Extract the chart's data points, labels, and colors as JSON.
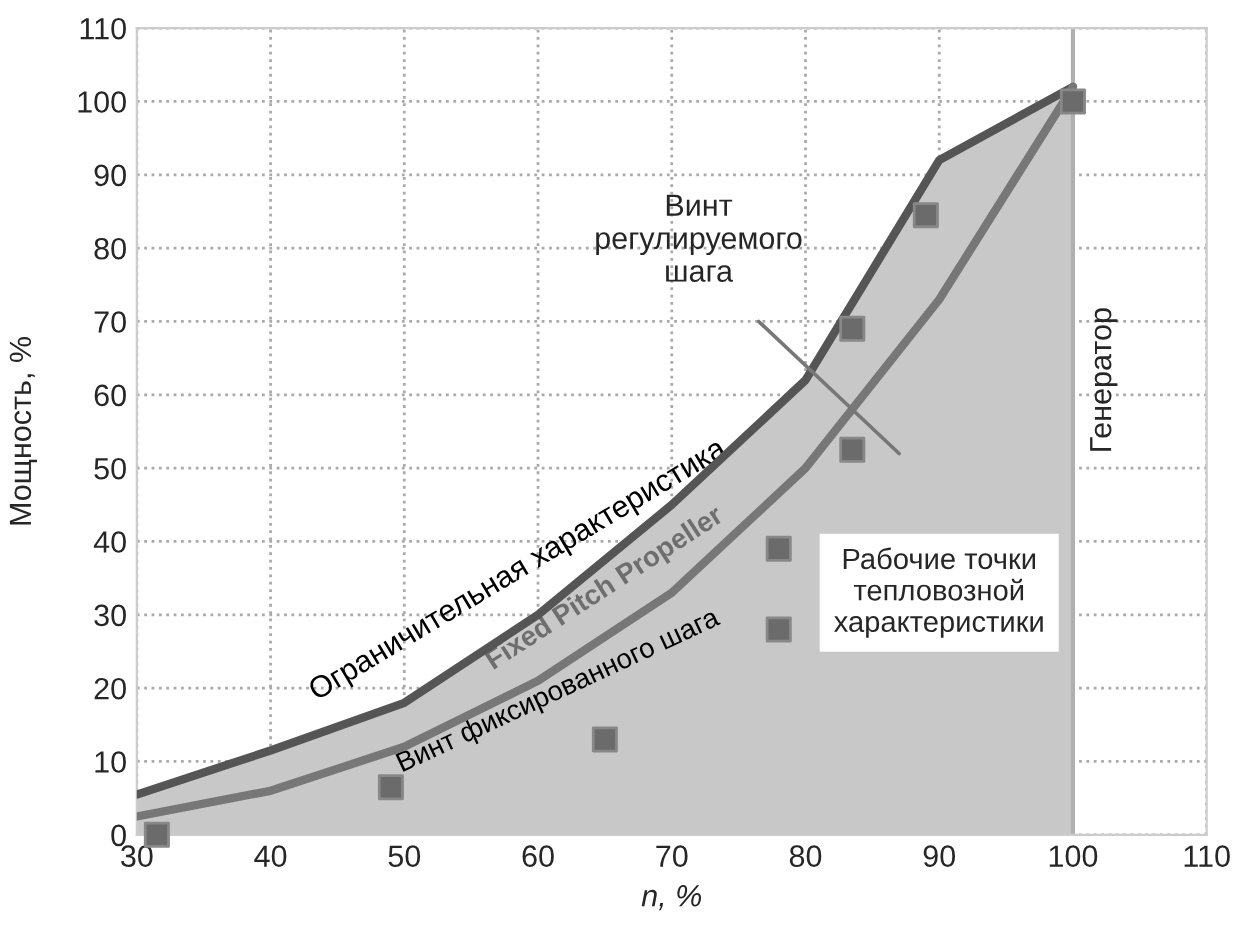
{
  "chart_data": {
    "type": "line",
    "xlabel": "n, %",
    "ylabel": "Мощность, %",
    "xlim": [
      30,
      110
    ],
    "xticks": [
      30,
      40,
      50,
      60,
      70,
      80,
      90,
      100,
      110
    ],
    "ylim": [
      0,
      110
    ],
    "yticks": [
      0,
      10,
      20,
      30,
      40,
      50,
      60,
      70,
      80,
      90,
      100,
      110
    ],
    "grid": true,
    "legend": false,
    "series": [
      {
        "type": "area",
        "color": "#555555",
        "x": [
          30,
          40,
          50,
          60,
          70,
          80,
          90,
          100
        ],
        "values": [
          5.5,
          11.5,
          18,
          30,
          45,
          62,
          92,
          102
        ]
      },
      {
        "color": "#777777",
        "x": [
          30,
          40,
          50,
          60,
          70,
          80,
          90,
          100
        ],
        "values": [
          2.5,
          6,
          12,
          21,
          33,
          50,
          73,
          102
        ]
      },
      {
        "type": "scatter",
        "color": "#6b6b6b",
        "marker": "square",
        "x": [
          31.5,
          49,
          65,
          78,
          78,
          83.5,
          83.5,
          89,
          100
        ],
        "values": [
          0,
          6.5,
          13,
          28,
          39,
          52.5,
          69,
          84.5,
          100
        ]
      }
    ],
    "ref_lines": [
      {
        "axis": "x",
        "value": 100,
        "label": "Генератор",
        "color": "#b0b0b0"
      }
    ],
    "annotations": [
      "Ограничительная характеристика",
      "Fixed Pitch Propeller",
      "Винт фиксированного шага",
      "Винт регулируемого шага",
      "Рабочие точки тепловозной характеристики"
    ]
  }
}
